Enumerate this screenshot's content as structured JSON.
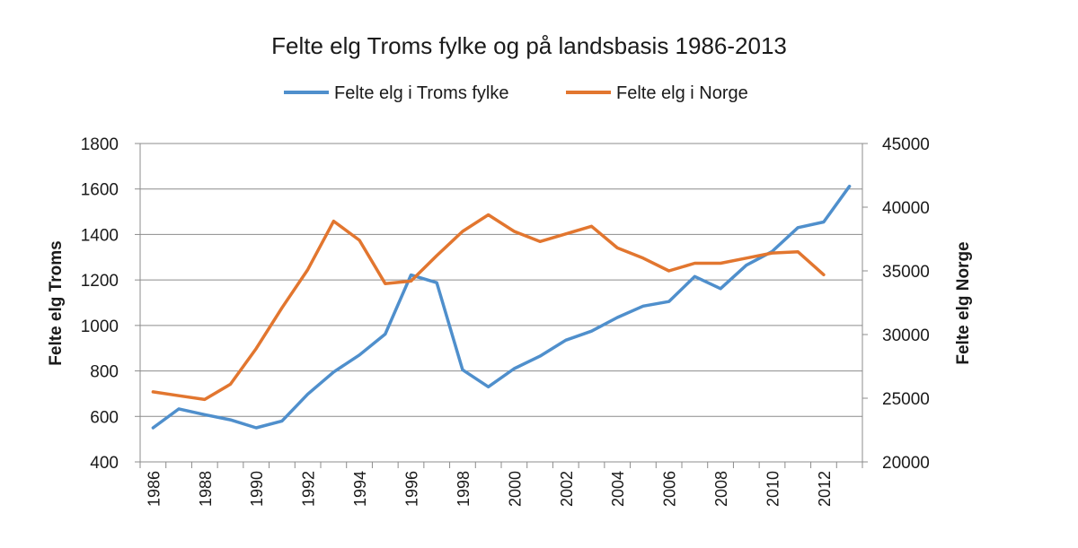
{
  "chart_data": {
    "type": "line",
    "title": "Felte elg Troms fylke og på landsbasis 1986-2013",
    "ylabel": "Felte elg Troms",
    "y2label": "Felte elg  Norge",
    "ylim": [
      400,
      1800
    ],
    "y2lim": [
      20000,
      45000
    ],
    "yticks": [
      "400",
      "600",
      "800",
      "1000",
      "1200",
      "1400",
      "1600",
      "1800"
    ],
    "y2ticks": [
      "20000",
      "25000",
      "30000",
      "35000",
      "40000",
      "45000"
    ],
    "x": [
      1986,
      1987,
      1988,
      1989,
      1990,
      1991,
      1992,
      1993,
      1994,
      1995,
      1996,
      1997,
      1998,
      1999,
      2000,
      2001,
      2002,
      2003,
      2004,
      2005,
      2006,
      2007,
      2008,
      2009,
      2010,
      2011,
      2012,
      2013
    ],
    "xticks": [
      "1986",
      "1988",
      "1990",
      "1992",
      "1994",
      "1996",
      "1998",
      "2000",
      "2002",
      "2004",
      "2006",
      "2008",
      "2010",
      "2012"
    ],
    "grid": true,
    "legend_position": "top",
    "series": [
      {
        "name": "Felte elg i Troms fylke",
        "axis": "left",
        "color": "#4f8fcc",
        "values": [
          550,
          633,
          608,
          585,
          550,
          580,
          698,
          795,
          870,
          962,
          1222,
          1188,
          805,
          730,
          810,
          865,
          935,
          975,
          1035,
          1085,
          1105,
          1215,
          1162,
          1265,
          1325,
          1430,
          1455,
          1612
        ]
      },
      {
        "name": "Felte elg i Norge",
        "axis": "right",
        "color": "#e2762f",
        "values": [
          25500,
          25200,
          24900,
          26100,
          28900,
          32100,
          35100,
          38900,
          37400,
          34000,
          34200,
          36200,
          38100,
          39400,
          38100,
          37300,
          37900,
          38500,
          36800,
          36000,
          35000,
          35600,
          35600,
          36000,
          36400,
          36500,
          34700,
          null
        ]
      }
    ]
  }
}
